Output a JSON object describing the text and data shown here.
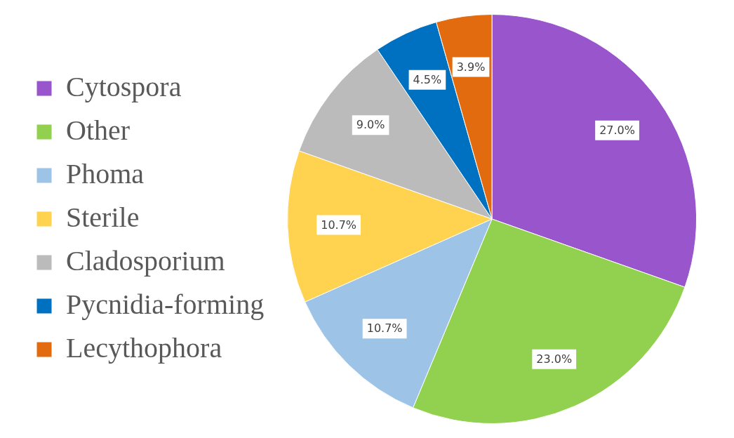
{
  "chart_data": {
    "type": "pie",
    "categories": [
      "Cytospora",
      "Other",
      "Phoma",
      "Sterile",
      "Cladosporium",
      "Pycnidia-forming",
      "Lecythophora"
    ],
    "values": [
      27.0,
      23.0,
      10.7,
      10.7,
      9.0,
      4.5,
      3.9
    ],
    "colors": [
      "#9955cc",
      "#92d050",
      "#9dc3e6",
      "#ffd34f",
      "#bbbbbb",
      "#0070c0",
      "#e26b10"
    ],
    "value_labels": [
      "27.0%",
      "23.0%",
      "10.7%",
      "10.7%",
      "9.0%",
      "4.5%",
      "3.9%"
    ],
    "legend": "left"
  }
}
